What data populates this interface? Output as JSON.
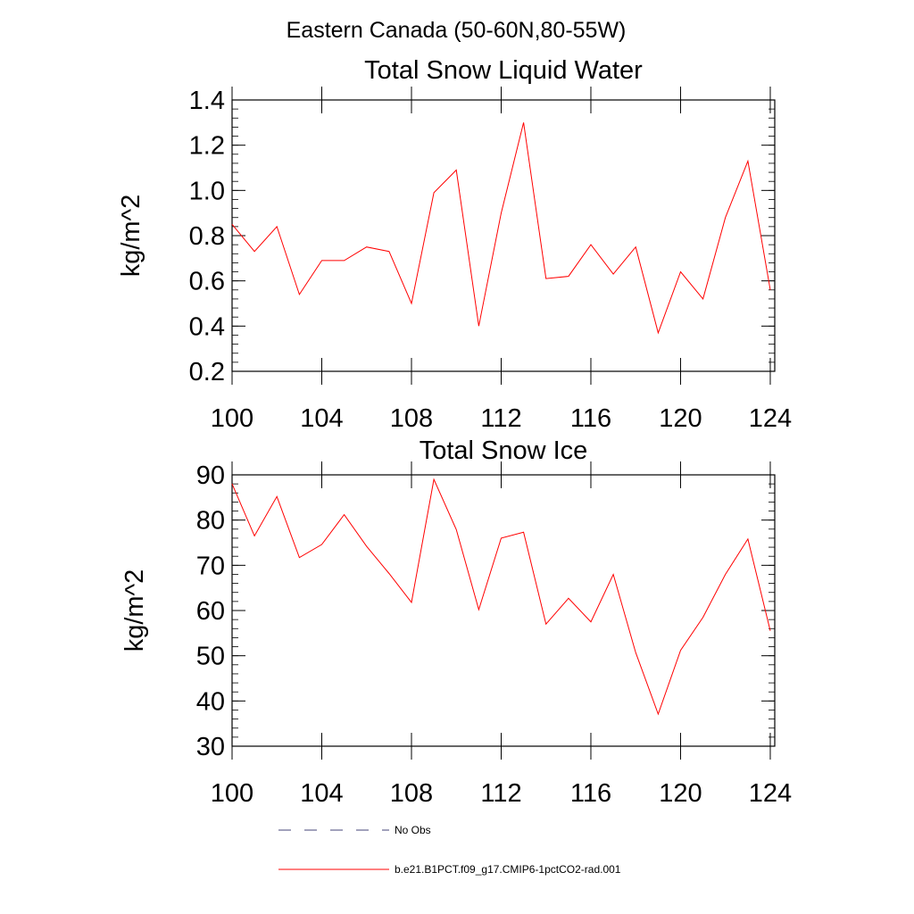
{
  "suptitle": "Eastern Canada (50-60N,80-55W)",
  "legend": [
    {
      "label": "No Obs",
      "color": "#44447a",
      "style": "dashed"
    },
    {
      "label": "b.e21.B1PCT.f09_g17.CMIP6-1pctCO2-rad.001",
      "color": "#ff0000",
      "style": "solid"
    }
  ],
  "chart_data": [
    {
      "type": "line",
      "title": "Total Snow Liquid Water",
      "xlabel": "",
      "ylabel": "kg/m^2",
      "xlim": [
        100,
        124.2
      ],
      "ylim": [
        0.2,
        1.4
      ],
      "xticks": [
        100,
        104,
        108,
        112,
        116,
        120,
        124
      ],
      "xtick_labels": [
        "100",
        "104",
        "108",
        "112",
        "116",
        "120",
        "124"
      ],
      "yticks": [
        0.2,
        0.4,
        0.6,
        0.8,
        1.0,
        1.2,
        1.4
      ],
      "ytick_labels": [
        "0.2",
        "0.4",
        "0.6",
        "0.8",
        "1.0",
        "1.2",
        "1.4"
      ],
      "x": [
        100,
        101,
        102,
        103,
        104,
        105,
        106,
        107,
        108,
        109,
        110,
        111,
        112,
        113,
        114,
        115,
        116,
        117,
        118,
        119,
        120,
        121,
        122,
        123,
        124
      ],
      "series": [
        {
          "name": "b.e21.B1PCT.f09_g17.CMIP6-1pctCO2-rad.001",
          "color": "#ff0000",
          "values": [
            0.85,
            0.73,
            0.84,
            0.54,
            0.69,
            0.69,
            0.75,
            0.73,
            0.5,
            0.99,
            1.09,
            0.4,
            0.9,
            1.3,
            0.61,
            0.62,
            0.76,
            0.63,
            0.75,
            0.37,
            0.64,
            0.52,
            0.88,
            1.13,
            0.56
          ]
        }
      ]
    },
    {
      "type": "line",
      "title": "Total Snow Ice",
      "xlabel": "",
      "ylabel": "kg/m^2",
      "xlim": [
        100,
        124.2
      ],
      "ylim": [
        30,
        90
      ],
      "xticks": [
        100,
        104,
        108,
        112,
        116,
        120,
        124
      ],
      "xtick_labels": [
        "100",
        "104",
        "108",
        "112",
        "116",
        "120",
        "124"
      ],
      "yticks": [
        30,
        40,
        50,
        60,
        70,
        80,
        90
      ],
      "ytick_labels": [
        "30",
        "40",
        "50",
        "60",
        "70",
        "80",
        "90"
      ],
      "x": [
        100,
        101,
        102,
        103,
        104,
        105,
        106,
        107,
        108,
        109,
        110,
        111,
        112,
        113,
        114,
        115,
        116,
        117,
        118,
        119,
        120,
        121,
        122,
        123,
        124
      ],
      "series": [
        {
          "name": "b.e21.B1PCT.f09_g17.CMIP6-1pctCO2-rad.001",
          "color": "#ff0000",
          "values": [
            88,
            76.5,
            85.2,
            71.7,
            74.6,
            81.2,
            74.2,
            68.2,
            61.8,
            89,
            77.9,
            60.2,
            76,
            77.3,
            57,
            62.7,
            57.5,
            68,
            50.7,
            37.1,
            51.2,
            58.5,
            68,
            75.8,
            55.5
          ]
        }
      ]
    }
  ]
}
